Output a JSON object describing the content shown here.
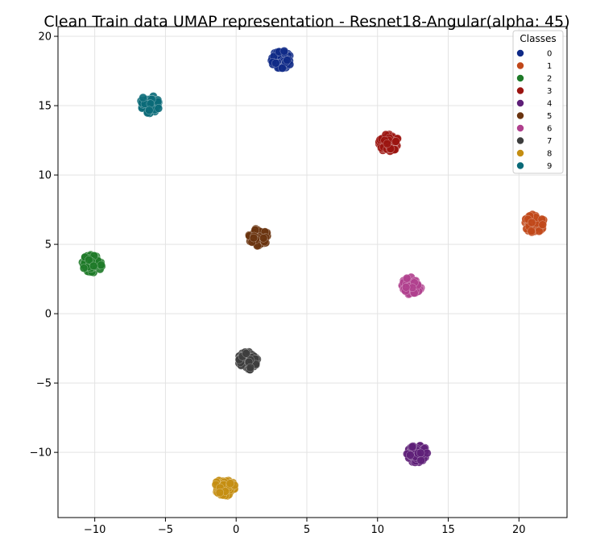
{
  "chart_data": {
    "type": "scatter",
    "title": "Clean Train data UMAP representation - Resnet18-Angular(alpha: 45)",
    "xlabel": "",
    "ylabel": "",
    "xlim": [
      -12.6,
      23.4
    ],
    "ylim": [
      -14.7,
      20.7
    ],
    "x_ticks": [
      -10,
      -5,
      0,
      5,
      10,
      15,
      20
    ],
    "y_ticks": [
      -10,
      -5,
      0,
      5,
      10,
      15,
      20
    ],
    "x_tick_labels": [
      "−10",
      "−5",
      "0",
      "5",
      "10",
      "15",
      "20"
    ],
    "y_tick_labels": [
      "−10",
      "−5",
      "0",
      "5",
      "10",
      "15",
      "20"
    ],
    "grid": true,
    "legend": {
      "title": "Classes",
      "position": "top-right",
      "entries": [
        "0",
        "1",
        "2",
        "3",
        "4",
        "5",
        "6",
        "7",
        "8",
        "9"
      ]
    },
    "series": [
      {
        "name": "0",
        "color": "#0f2a87",
        "center": [
          3.2,
          18.3
        ]
      },
      {
        "name": "1",
        "color": "#c1481a",
        "center": [
          21.1,
          6.5
        ]
      },
      {
        "name": "2",
        "color": "#1e7a28",
        "center": [
          -10.2,
          3.6
        ]
      },
      {
        "name": "3",
        "color": "#9b1410",
        "center": [
          10.8,
          12.3
        ]
      },
      {
        "name": "4",
        "color": "#5e1f78",
        "center": [
          12.8,
          -10.1
        ]
      },
      {
        "name": "5",
        "color": "#6a3410",
        "center": [
          1.6,
          5.5
        ]
      },
      {
        "name": "6",
        "color": "#b0408e",
        "center": [
          12.4,
          2.0
        ]
      },
      {
        "name": "7",
        "color": "#3d3d3d",
        "center": [
          0.8,
          -3.4
        ]
      },
      {
        "name": "8",
        "color": "#c48e12",
        "center": [
          -0.8,
          -12.5
        ]
      },
      {
        "name": "9",
        "color": "#0a6a78",
        "center": [
          -6.1,
          15.1
        ]
      }
    ]
  }
}
